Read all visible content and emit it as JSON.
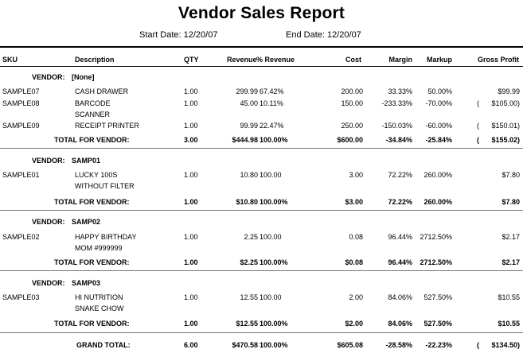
{
  "report": {
    "title": "Vendor Sales Report",
    "start_label": "Start Date:",
    "start_date": "12/20/07",
    "end_label": "End Date:",
    "end_date": "12/20/07"
  },
  "columns": {
    "sku": "SKU",
    "description": "Description",
    "qty": "QTY",
    "revenue": "Revenue",
    "pct_revenue": "% Revenue",
    "cost": "Cost",
    "margin": "Margin",
    "markup": "Markup",
    "gross_profit": "Gross Profit"
  },
  "vendor_label": "VENDOR:",
  "total_label": "TOTAL FOR VENDOR:",
  "vendors": [
    {
      "name": "[None]",
      "items": [
        {
          "sku": "SAMPLE07",
          "desc1": "CASH DRAWER",
          "desc2": "",
          "qty": "1.00",
          "revenue": "299.99",
          "pct": "67.42%",
          "cost": "200.00",
          "margin": "33.33%",
          "markup": "50.00%",
          "gp_paren": "",
          "gp": "$99.99"
        },
        {
          "sku": "SAMPLE08",
          "desc1": "BARCODE",
          "desc2": "SCANNER",
          "qty": "1.00",
          "revenue": "45.00",
          "pct": "10.11%",
          "cost": "150.00",
          "margin": "-233.33%",
          "markup": "-70.00%",
          "gp_paren": "(",
          "gp": "$105.00)"
        },
        {
          "sku": "SAMPLE09",
          "desc1": "RECEIPT PRINTER",
          "desc2": "",
          "qty": "1.00",
          "revenue": "99.99",
          "pct": "22.47%",
          "cost": "250.00",
          "margin": "-150.03%",
          "markup": "-60.00%",
          "gp_paren": "(",
          "gp": "$150.01)"
        }
      ],
      "total": {
        "qty": "3.00",
        "revenue": "$444.98",
        "pct": "100.00%",
        "cost": "$600.00",
        "margin": "-34.84%",
        "markup": "-25.84%",
        "gp_paren": "(",
        "gp": "$155.02)"
      }
    },
    {
      "name": "SAMP01",
      "items": [
        {
          "sku": "SAMPLE01",
          "desc1": "LUCKY 100S",
          "desc2": "WITHOUT FILTER",
          "qty": "1.00",
          "revenue": "10.80",
          "pct": "100.00",
          "cost": "3.00",
          "margin": "72.22%",
          "markup": "260.00%",
          "gp_paren": "",
          "gp": "$7.80"
        }
      ],
      "total": {
        "qty": "1.00",
        "revenue": "$10.80",
        "pct": "100.00%",
        "cost": "$3.00",
        "margin": "72.22%",
        "markup": "260.00%",
        "gp_paren": "",
        "gp": "$7.80"
      }
    },
    {
      "name": "SAMP02",
      "items": [
        {
          "sku": "SAMPLE02",
          "desc1": "HAPPY BIRTHDAY",
          "desc2": "MOM #999999",
          "qty": "1.00",
          "revenue": "2.25",
          "pct": "100.00",
          "cost": "0.08",
          "margin": "96.44%",
          "markup": "2712.50%",
          "gp_paren": "",
          "gp": "$2.17"
        }
      ],
      "total": {
        "qty": "1.00",
        "revenue": "$2.25",
        "pct": "100.00%",
        "cost": "$0.08",
        "margin": "96.44%",
        "markup": "2712.50%",
        "gp_paren": "",
        "gp": "$2.17"
      }
    },
    {
      "name": "SAMP03",
      "items": [
        {
          "sku": "SAMPLE03",
          "desc1": "HI NUTRITION",
          "desc2": "SNAKE CHOW",
          "qty": "1.00",
          "revenue": "12.55",
          "pct": "100.00",
          "cost": "2.00",
          "margin": "84.06%",
          "markup": "527.50%",
          "gp_paren": "",
          "gp": "$10.55"
        }
      ],
      "total": {
        "qty": "1.00",
        "revenue": "$12.55",
        "pct": "100.00%",
        "cost": "$2.00",
        "margin": "84.06%",
        "markup": "527.50%",
        "gp_paren": "",
        "gp": "$10.55"
      }
    }
  ],
  "grand_total": {
    "label": "GRAND TOTAL:",
    "qty": "6.00",
    "revenue": "$470.58",
    "pct": "100.00%",
    "cost": "$605.08",
    "margin": "-28.58%",
    "markup": "-22.23%",
    "gp_paren": "(",
    "gp": "$134.50)"
  }
}
